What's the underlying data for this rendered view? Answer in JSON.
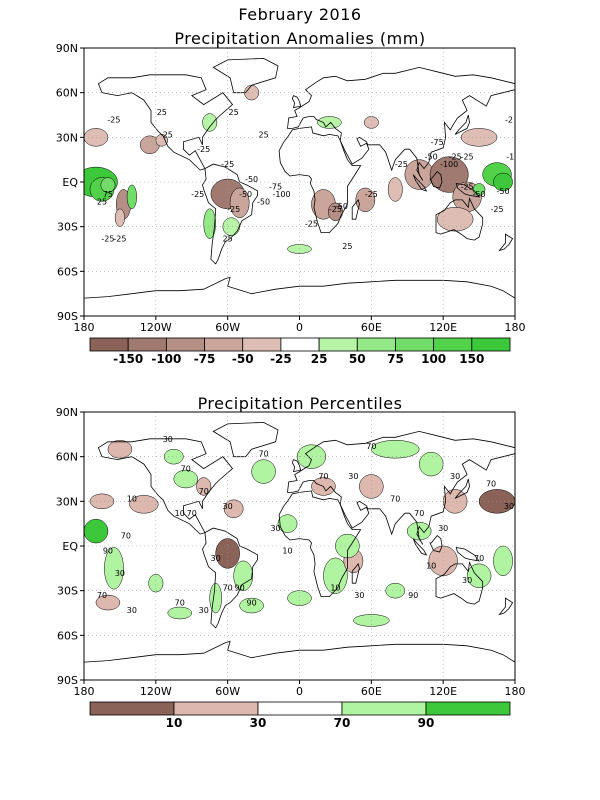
{
  "header": {
    "month_title": "February 2016"
  },
  "panels": [
    {
      "title": "Precipitation Anomalies (mm)",
      "lat_ticks": [
        "90N",
        "60N",
        "30N",
        "EQ",
        "30S",
        "60S",
        "90S"
      ],
      "lon_ticks": [
        "180",
        "120W",
        "60W",
        "0",
        "60E",
        "120E",
        "180"
      ],
      "colorbar": {
        "labels": [
          "-150",
          "-100",
          "-75",
          "-50",
          "-25",
          "25",
          "50",
          "75",
          "100",
          "150"
        ],
        "colors": [
          "#8b6258",
          "#a07a70",
          "#b58f86",
          "#c9a59c",
          "#ddbdb4",
          "#ffffff",
          "#b8f4a8",
          "#94e887",
          "#72dc68",
          "#52d24a",
          "#3cc83a"
        ]
      },
      "contour_labels": [
        "-25",
        "25",
        "-25",
        "25",
        "-25",
        "-50",
        "-25",
        "25",
        "-50",
        "-25",
        "-50",
        "-25",
        "25",
        "-25",
        "-25",
        "-50",
        "-75",
        "-100",
        "-25",
        "-25",
        "-50",
        "-25",
        "25",
        "75",
        "-25",
        "-25",
        "-25",
        "-50",
        "-75",
        "-100",
        "-25",
        "-50",
        "25",
        "25",
        "-2",
        "-1"
      ]
    },
    {
      "title": "Precipitation Percentiles",
      "lat_ticks": [
        "90N",
        "60N",
        "30N",
        "EQ",
        "30S",
        "60S",
        "90S"
      ],
      "lon_ticks": [
        "180",
        "120W",
        "60W",
        "0",
        "60E",
        "120E",
        "180"
      ],
      "colorbar": {
        "labels": [
          "10",
          "30",
          "70",
          "90"
        ],
        "colors": [
          "#8b6258",
          "#ddb8ae",
          "#ffffff",
          "#b0f3a0",
          "#3cc83a"
        ]
      },
      "contour_labels": [
        "30",
        "70",
        "10",
        "70",
        "30",
        "70",
        "30",
        "90",
        "70",
        "70",
        "30",
        "10",
        "30",
        "70",
        "90",
        "30",
        "10",
        "70",
        "30",
        "70",
        "70",
        "30",
        "10",
        "90",
        "30",
        "70",
        "90",
        "30",
        "10",
        "30",
        "70",
        "70",
        "70",
        "70",
        "30",
        "30"
      ]
    }
  ]
}
